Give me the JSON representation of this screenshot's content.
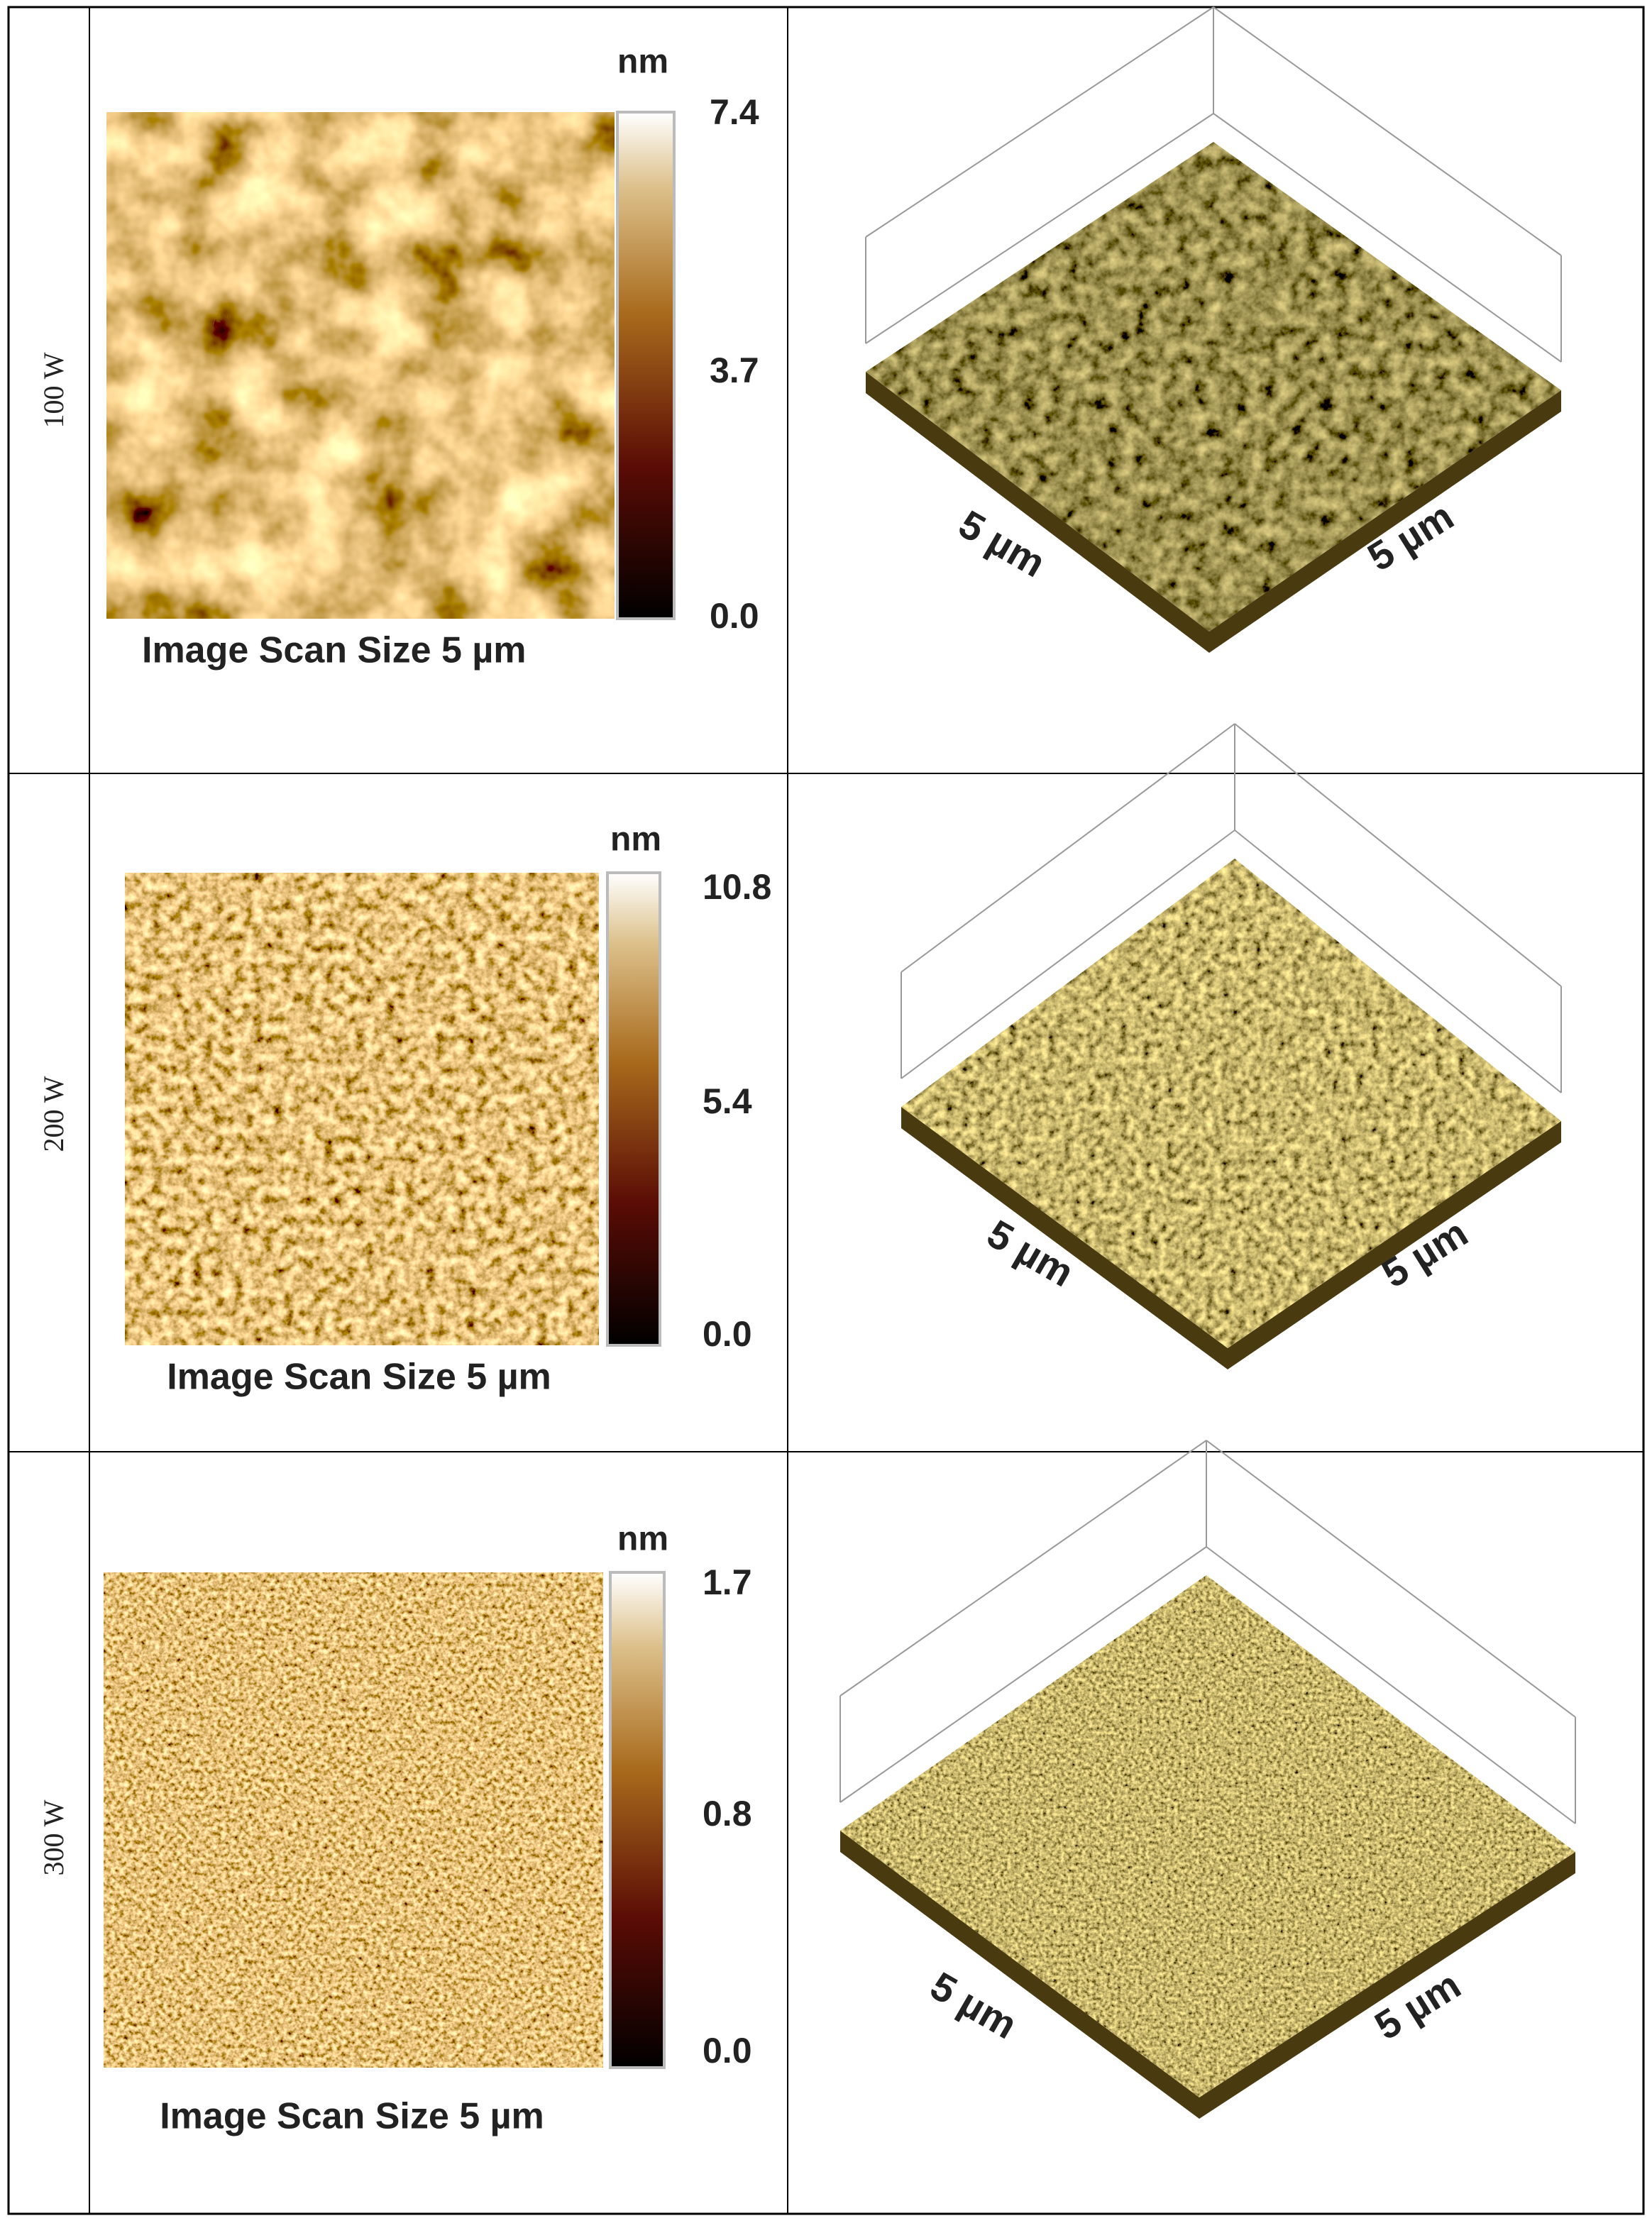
{
  "table": {
    "rows": [
      {
        "label": "100 W",
        "unit": "nm",
        "scale": [
          "7.4",
          "3.7",
          "0.0"
        ],
        "caption": "Image Scan Size 5 µm",
        "axis_labels": [
          "5 µm",
          "5 µm"
        ]
      },
      {
        "label": "200 W",
        "unit": "nm",
        "scale": [
          "10.8",
          "5.4",
          "0.0"
        ],
        "caption": "Image Scan Size 5 µm",
        "axis_labels": [
          "5 µm",
          "5 µm"
        ]
      },
      {
        "label": "300 W",
        "unit": "nm",
        "scale": [
          "1.7",
          "0.8",
          "0.0"
        ],
        "caption": "Image Scan Size 5 µm",
        "axis_labels": [
          "5 µm",
          "5 µm"
        ]
      }
    ]
  }
}
